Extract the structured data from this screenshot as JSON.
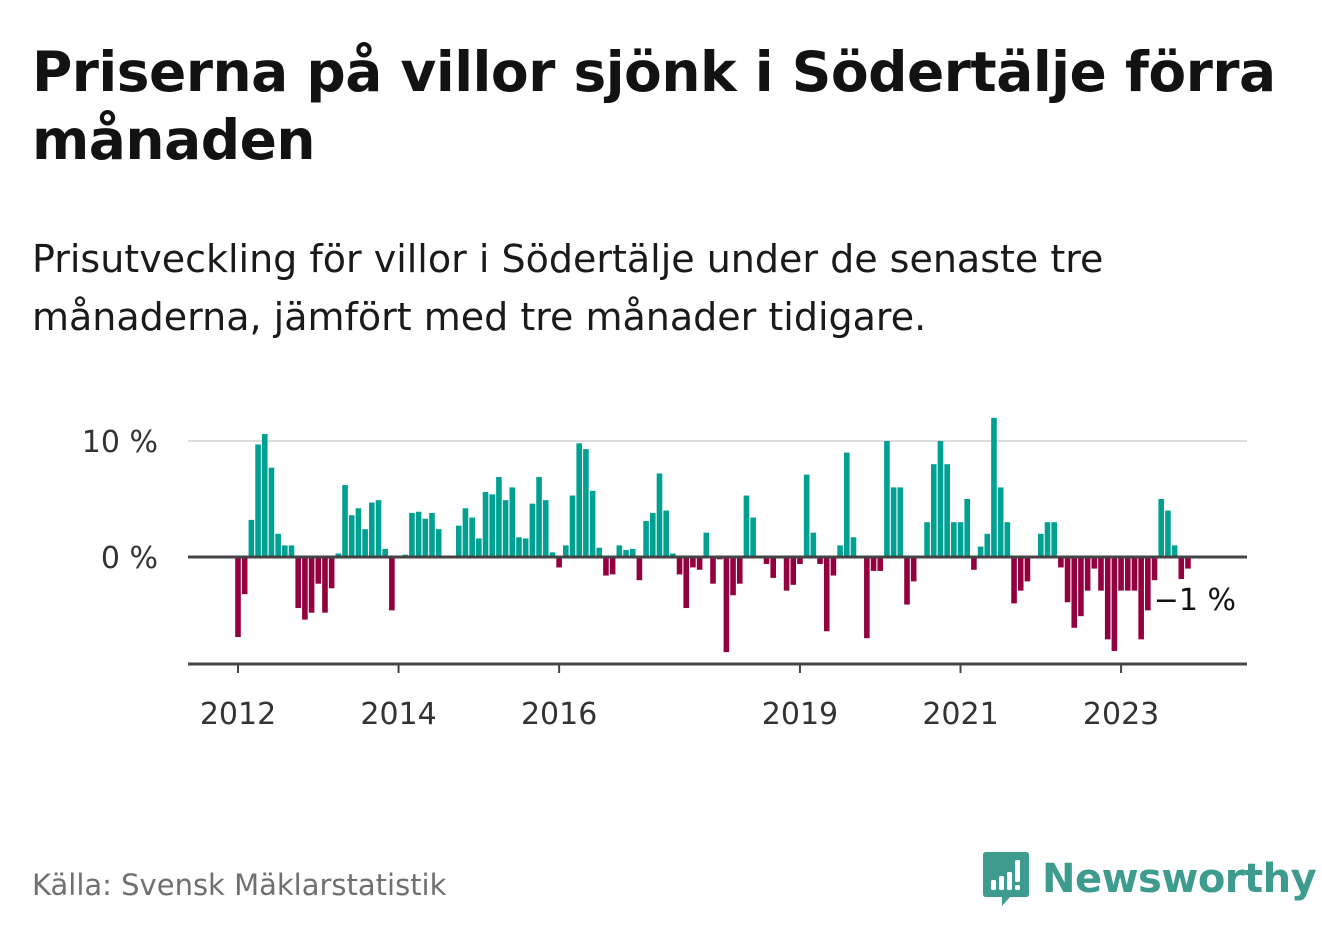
{
  "header": {
    "title": "Priserna på villor sjönk i Södertälje förra månaden",
    "subtitle": "Prisutveckling för villor i Södertälje under de senaste tre månaderna, jämfört med tre månader tidigare."
  },
  "footer": {
    "source": "Källa: Svensk Mäklarstatistik",
    "brand": "Newsworthy"
  },
  "colors": {
    "positive": "#00a092",
    "negative": "#930040",
    "brand": "#3d9c8e"
  },
  "chart_data": {
    "type": "bar",
    "title": "Priserna på villor sjönk i Södertälje förra månaden",
    "subtitle": "Prisutveckling för villor i Södertälje under de senaste tre månaderna, jämfört med tre månader tidigare.",
    "xlabel": "",
    "ylabel": "",
    "unit": "%",
    "ylim": [
      -9,
      12
    ],
    "yticks": [
      0,
      10
    ],
    "ytick_labels": [
      "0 %",
      "10 %"
    ],
    "xtick_labels": [
      "2012",
      "2014",
      "2016",
      "2019",
      "2021",
      "2023"
    ],
    "xtick_index": [
      0,
      24,
      48,
      84,
      108,
      132
    ],
    "grid": true,
    "start": "2012-01",
    "frequency": "monthly",
    "last_value_label": "−1 %",
    "values": [
      -6.9,
      -3.2,
      3.2,
      9.7,
      10.6,
      7.7,
      2.0,
      1.0,
      1.0,
      -4.4,
      -5.4,
      -4.8,
      -2.3,
      -4.8,
      -2.7,
      0.3,
      6.2,
      3.6,
      4.2,
      2.4,
      4.7,
      4.9,
      0.7,
      -4.6,
      0.0,
      0.2,
      3.8,
      3.9,
      3.3,
      3.8,
      2.4,
      0.0,
      0.0,
      2.7,
      4.2,
      3.4,
      1.6,
      5.6,
      5.4,
      6.9,
      4.9,
      6.0,
      1.7,
      1.6,
      4.6,
      6.9,
      4.9,
      0.4,
      -0.9,
      1.0,
      5.3,
      9.8,
      9.3,
      5.7,
      0.8,
      -1.6,
      -1.5,
      1.0,
      0.6,
      0.7,
      -2.0,
      3.1,
      3.8,
      7.2,
      4.0,
      0.3,
      -1.5,
      -4.4,
      -0.9,
      -1.1,
      2.1,
      -2.3,
      -0.2,
      -8.2,
      -3.3,
      -2.3,
      5.3,
      3.4,
      0.0,
      -0.6,
      -1.8,
      0.0,
      -2.9,
      -2.4,
      -0.6,
      7.1,
      2.1,
      -0.6,
      -6.4,
      -1.6,
      1.0,
      9.0,
      1.7,
      0.0,
      -7.0,
      -1.2,
      -1.2,
      10.0,
      6.0,
      6.0,
      -4.1,
      -2.1,
      0.0,
      3.0,
      8.0,
      10.0,
      8.0,
      3.0,
      3.0,
      5.0,
      -1.1,
      0.9,
      2.0,
      12.0,
      6.0,
      3.0,
      -4.0,
      -2.9,
      -2.1,
      0.0,
      2.0,
      3.0,
      3.0,
      -0.9,
      -3.9,
      -6.1,
      -5.1,
      -2.9,
      -1.0,
      -2.9,
      -7.1,
      -8.1,
      -2.9,
      -2.9,
      -2.9,
      -7.1,
      -4.6,
      -2.0,
      5.0,
      4.0,
      1.0,
      -1.9,
      -1.0
    ]
  }
}
